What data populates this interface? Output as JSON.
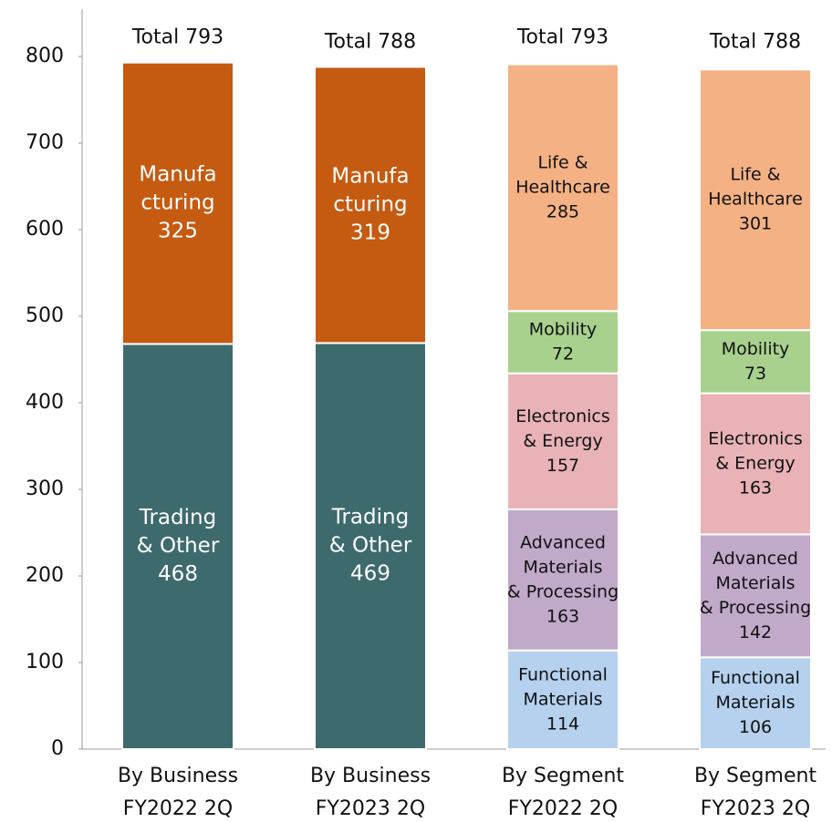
{
  "chart_data": {
    "type": "stacked_bar",
    "categories": [
      [
        "By Business",
        "FY2022 2Q"
      ],
      [
        "By Business",
        "FY2023 2Q"
      ],
      [
        "By Segment",
        "FY2022 2Q"
      ],
      [
        "By Segment",
        "FY2023 2Q"
      ]
    ],
    "series": [
      {
        "name": [
          "Trading",
          "& Other"
        ],
        "color": "#3d6a6d",
        "text_color": "#ffffff",
        "values": [
          468,
          469,
          null,
          null
        ]
      },
      {
        "name": [
          "Manufa",
          "cturing"
        ],
        "color": "#c55a11",
        "text_color": "#ffffff",
        "values": [
          325,
          319,
          null,
          null
        ]
      },
      {
        "name": [
          "Functional",
          "Materials"
        ],
        "color": "#b5d1ee",
        "text_color": "#111111",
        "values": [
          null,
          null,
          114,
          106
        ]
      },
      {
        "name": [
          "Advanced",
          "Materials",
          "& Processing"
        ],
        "color": "#c1a9c9",
        "text_color": "#111111",
        "values": [
          null,
          null,
          163,
          142
        ]
      },
      {
        "name": [
          "Electronics",
          "& Energy"
        ],
        "color": "#e8b2b7",
        "text_color": "#111111",
        "values": [
          null,
          null,
          157,
          163
        ]
      },
      {
        "name": [
          "Mobility"
        ],
        "color": "#a9d18e",
        "text_color": "#111111",
        "values": [
          null,
          null,
          72,
          73
        ]
      },
      {
        "name": [
          "Life &",
          "Healthcare"
        ],
        "color": "#f4b184",
        "text_color": "#111111",
        "values": [
          null,
          null,
          285,
          301
        ]
      }
    ],
    "totals": [
      793,
      788,
      793,
      788
    ],
    "total_labels": [
      "Total 793",
      "Total 788",
      "Total 793",
      "Total 788"
    ],
    "ylim": [
      0,
      800
    ],
    "yticks": [
      0,
      100,
      200,
      300,
      400,
      500,
      600,
      700,
      800
    ]
  }
}
